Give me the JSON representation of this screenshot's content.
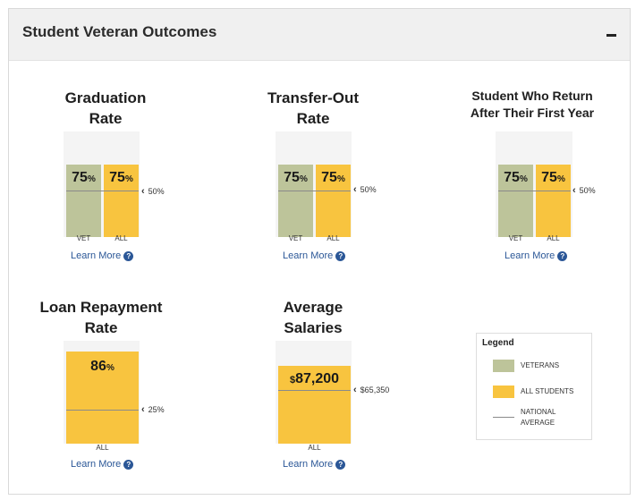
{
  "header": {
    "title": "Student Veteran Outcomes"
  },
  "learn_more": "Learn More",
  "help_glyph": "?",
  "colors": {
    "veterans": "#bdc49a",
    "all_students": "#f8c43f",
    "national_average": "#8a8a8a"
  },
  "metrics": [
    {
      "title_line1": "Graduation",
      "title_line2": "Rate",
      "vet_value": "75",
      "all_value": "75",
      "unit": "%",
      "national_average": "50%",
      "vet_label": "VET",
      "all_label": "ALL"
    },
    {
      "title_line1": "Transfer-Out",
      "title_line2": "Rate",
      "vet_value": "75",
      "all_value": "75",
      "unit": "%",
      "national_average": "50%",
      "vet_label": "VET",
      "all_label": "ALL"
    },
    {
      "title_line1": "Student Who Return",
      "title_line2": "After Their First Year",
      "vet_value": "75",
      "all_value": "75",
      "unit": "%",
      "national_average": "50%",
      "vet_label": "VET",
      "all_label": "ALL"
    },
    {
      "title_line1": "Loan Repayment",
      "title_line2": "Rate",
      "all_value": "86",
      "unit": "%",
      "national_average": "25%",
      "all_label": "ALL"
    },
    {
      "title_line1": "Average",
      "title_line2": "Salaries",
      "currency": "$",
      "all_value": "87,200",
      "national_average": "$65,350",
      "all_label": "ALL"
    }
  ],
  "legend": {
    "title": "Legend",
    "veterans": "VETERANS",
    "all_students": "ALL STUDENTS",
    "national_line1": "NATIONAL",
    "national_line2": "AVERAGE"
  },
  "chart_data": [
    {
      "type": "bar",
      "title": "Graduation Rate",
      "categories": [
        "VET",
        "ALL"
      ],
      "values": [
        75,
        75
      ],
      "unit": "%",
      "national_average": 50,
      "ylim": [
        0,
        100
      ]
    },
    {
      "type": "bar",
      "title": "Transfer-Out Rate",
      "categories": [
        "VET",
        "ALL"
      ],
      "values": [
        75,
        75
      ],
      "unit": "%",
      "national_average": 50,
      "ylim": [
        0,
        100
      ]
    },
    {
      "type": "bar",
      "title": "Student Who Return After Their First Year",
      "categories": [
        "VET",
        "ALL"
      ],
      "values": [
        75,
        75
      ],
      "unit": "%",
      "national_average": 50,
      "ylim": [
        0,
        100
      ]
    },
    {
      "type": "bar",
      "title": "Loan Repayment Rate",
      "categories": [
        "ALL"
      ],
      "values": [
        86
      ],
      "unit": "%",
      "national_average": 25,
      "ylim": [
        0,
        100
      ]
    },
    {
      "type": "bar",
      "title": "Average Salaries",
      "categories": [
        "ALL"
      ],
      "values": [
        87200
      ],
      "unit": "$",
      "national_average": 65350
    }
  ]
}
